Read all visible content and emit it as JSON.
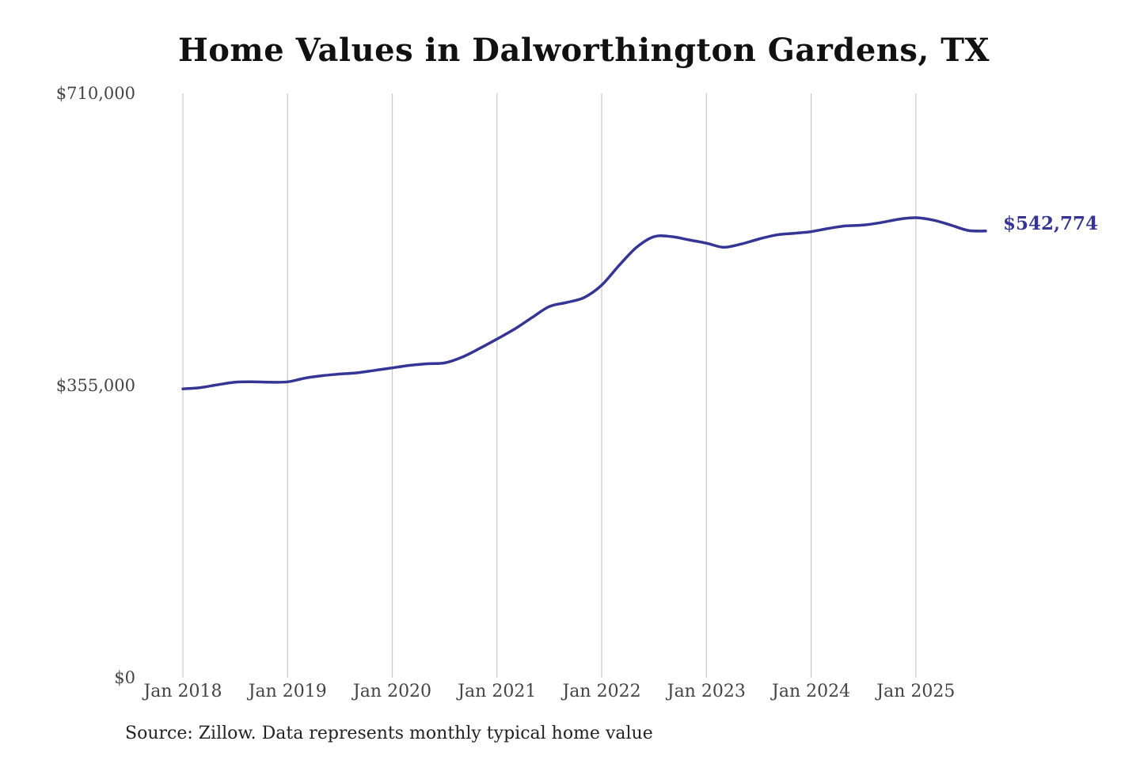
{
  "chart_data": {
    "type": "line",
    "title": "Home Values in Dalworthington Gardens, TX",
    "xlabel": "",
    "ylabel": "",
    "ylim": [
      0,
      710000
    ],
    "y_ticks": [
      {
        "value": 0,
        "label": "$0"
      },
      {
        "value": 355000,
        "label": "$355,000"
      },
      {
        "value": 710000,
        "label": "$710,000"
      }
    ],
    "x_ticks": [
      {
        "date": "2018-01",
        "label": "Jan 2018"
      },
      {
        "date": "2019-01",
        "label": "Jan 2019"
      },
      {
        "date": "2020-01",
        "label": "Jan 2020"
      },
      {
        "date": "2021-01",
        "label": "Jan 2021"
      },
      {
        "date": "2022-01",
        "label": "Jan 2022"
      },
      {
        "date": "2023-01",
        "label": "Jan 2023"
      },
      {
        "date": "2024-01",
        "label": "Jan 2024"
      },
      {
        "date": "2025-01",
        "label": "Jan 2025"
      }
    ],
    "xlim": [
      "2018-01",
      "2025-09"
    ],
    "grid": "vertical",
    "line_color": "#353595",
    "series": [
      {
        "points": [
          [
            "2018-01",
            351000
          ],
          [
            "2018-03",
            352500
          ],
          [
            "2018-05",
            356000
          ],
          [
            "2018-07",
            359000
          ],
          [
            "2018-09",
            359500
          ],
          [
            "2018-11",
            359000
          ],
          [
            "2019-01",
            359500
          ],
          [
            "2019-03",
            364000
          ],
          [
            "2019-05",
            367000
          ],
          [
            "2019-07",
            369000
          ],
          [
            "2019-09",
            370500
          ],
          [
            "2019-11",
            373500
          ],
          [
            "2020-01",
            376500
          ],
          [
            "2020-03",
            379500
          ],
          [
            "2020-05",
            381500
          ],
          [
            "2020-07",
            382500
          ],
          [
            "2020-09",
            389500
          ],
          [
            "2020-11",
            400000
          ],
          [
            "2021-01",
            411500
          ],
          [
            "2021-03",
            423500
          ],
          [
            "2021-05",
            437500
          ],
          [
            "2021-07",
            451000
          ],
          [
            "2021-09",
            456000
          ],
          [
            "2021-11",
            462000
          ],
          [
            "2022-01",
            477000
          ],
          [
            "2022-03",
            501000
          ],
          [
            "2022-05",
            523000
          ],
          [
            "2022-07",
            536000
          ],
          [
            "2022-09",
            536000
          ],
          [
            "2022-11",
            532000
          ],
          [
            "2023-01",
            528000
          ],
          [
            "2023-03",
            523000
          ],
          [
            "2023-05",
            527000
          ],
          [
            "2023-07",
            533000
          ],
          [
            "2023-09",
            538000
          ],
          [
            "2023-11",
            540000
          ],
          [
            "2024-01",
            542000
          ],
          [
            "2024-03",
            546000
          ],
          [
            "2024-05",
            549000
          ],
          [
            "2024-07",
            550000
          ],
          [
            "2024-09",
            553000
          ],
          [
            "2024-11",
            557000
          ],
          [
            "2025-01",
            559000
          ],
          [
            "2025-03",
            556000
          ],
          [
            "2025-05",
            550000
          ],
          [
            "2025-07",
            543500
          ],
          [
            "2025-09",
            542774
          ]
        ]
      }
    ],
    "end_label": "$542,774",
    "note": "Source: Zillow. Data represents monthly typical home value"
  }
}
